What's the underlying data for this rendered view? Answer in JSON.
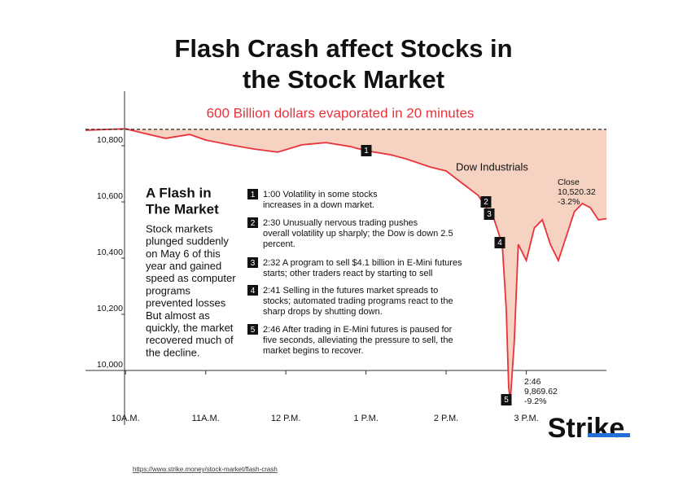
{
  "title_lines": [
    "Flash Crash affect Stocks in",
    "the Stock Market"
  ],
  "chart_data": {
    "type": "line",
    "subtitle": "600 Billion dollars evaporated in 20 minutes",
    "x": [
      9.5,
      10.0,
      10.2,
      10.5,
      10.8,
      11.0,
      11.3,
      11.6,
      11.9,
      12.2,
      12.5,
      12.8,
      13.0,
      13.3,
      13.5,
      13.8,
      14.0,
      14.2,
      14.4,
      14.5,
      14.6,
      14.7,
      14.75,
      14.78,
      14.8,
      14.85,
      14.9,
      15.0,
      15.1,
      15.2,
      15.3,
      15.4,
      15.5,
      15.6,
      15.7,
      15.8,
      15.9,
      16.0
    ],
    "series": [
      {
        "name": "Dow Industrials",
        "color": "#e8333a",
        "fill": "#f6d2c2",
        "values": [
          10835,
          10840,
          10826,
          10806,
          10820,
          10800,
          10783,
          10768,
          10757,
          10783,
          10791,
          10777,
          10762,
          10748,
          10733,
          10704,
          10690,
          10646,
          10603,
          10559,
          10516,
          10429,
          10197,
          9922,
          9870,
          10081,
          10429,
          10371,
          10487,
          10516,
          10429,
          10371,
          10458,
          10545,
          10574,
          10559,
          10516,
          10520
        ]
      }
    ],
    "reference_level": 10838,
    "xlim": [
      9.5,
      16
    ],
    "xticks": [
      {
        "value": 10,
        "label": "10A.M."
      },
      {
        "value": 11,
        "label": "11A.M."
      },
      {
        "value": 12,
        "label": "12 P.M."
      },
      {
        "value": 13,
        "label": "1 P.M."
      },
      {
        "value": 14,
        "label": "2 P.M."
      },
      {
        "value": 15,
        "label": "3 P.M."
      }
    ],
    "ylim": [
      9850,
      10900
    ],
    "yticks": [
      {
        "value": 10000,
        "label": "10,000"
      },
      {
        "value": 10200,
        "label": "10,200"
      },
      {
        "value": 10400,
        "label": "10,400"
      },
      {
        "value": 10600,
        "label": "10,600"
      },
      {
        "value": 10800,
        "label": "10,800"
      }
    ],
    "sidebar": {
      "heading_lines": [
        "A Flash in",
        "The Market"
      ],
      "text_lines": [
        "Stock markets",
        "plunged suddenly",
        "on May 6 of this",
        "year and gained",
        "speed as computer",
        "programs",
        "prevented losses",
        "But almost as",
        "quickly, the market",
        "recovered much of",
        "the decline."
      ]
    },
    "steps": [
      {
        "number": 1,
        "lines": [
          "1:00 Volatility in some stocks",
          "increases in a down market."
        ]
      },
      {
        "number": 2,
        "lines": [
          "2:30 Unusually nervous trading pushes",
          "overall volatility up sharply; the Dow is down 2.5",
          "percent."
        ]
      },
      {
        "number": 3,
        "lines": [
          "2:32 A program to sell $4.1 billion in E-Mini futures",
          "starts; other traders react by starting to sell"
        ]
      },
      {
        "number": 4,
        "lines": [
          "2:41 Selling in the futures market spreads to",
          "stocks; automated trading programs react to the",
          "sharp drops by shutting down."
        ]
      },
      {
        "number": 5,
        "lines": [
          "2:46 After trading in E-Mini futures is paused for",
          "five seconds, alleviating the pressure to sell, the",
          "market begins to recover."
        ]
      }
    ],
    "close_label": [
      "Close",
      "10,520.32",
      "-3.2%"
    ],
    "low_label": [
      "2:46",
      "9,869.62",
      "-9.2%"
    ]
  },
  "logo": "Strike",
  "source_url": "https://www.strike.money/stock-market/flash-crash"
}
